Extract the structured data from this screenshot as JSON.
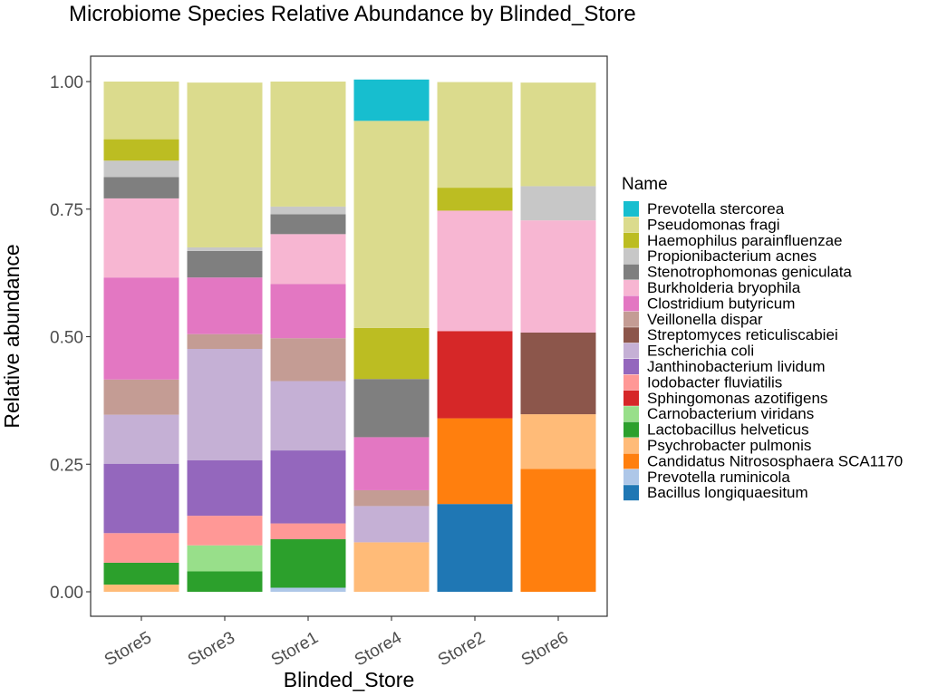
{
  "chart_data": {
    "type": "bar",
    "stacked": true,
    "title": "Microbiome Species Relative Abundance by Blinded_Store",
    "xlabel": "Blinded_Store",
    "ylabel": "Relative abundance",
    "ylim": [
      0,
      1
    ],
    "yticks": [
      "0.00",
      "0.25",
      "0.50",
      "0.75",
      "1.00"
    ],
    "ytick_values": [
      0,
      0.25,
      0.5,
      0.75,
      1.0
    ],
    "grid": false,
    "legend_position": "right",
    "legend_title": "Name",
    "categories": [
      "Store5",
      "Store3",
      "Store1",
      "Store4",
      "Store2",
      "Store6"
    ],
    "series": [
      {
        "name": "Prevotella stercorea",
        "color": "#17BECF",
        "values": [
          0,
          0,
          0,
          0.081,
          0,
          0
        ]
      },
      {
        "name": "Pseudomonas fragi",
        "color": "#DBDB8D",
        "values": [
          0.113,
          0.323,
          0.245,
          0.406,
          0.207,
          0.203
        ]
      },
      {
        "name": "Haemophilus parainfluenzae",
        "color": "#BCBD22",
        "values": [
          0.042,
          0,
          0,
          0.1,
          0.045,
          0
        ]
      },
      {
        "name": "Propionibacterium acnes",
        "color": "#C7C7C7",
        "values": [
          0.032,
          0.007,
          0.015,
          0,
          0,
          0.067
        ]
      },
      {
        "name": "Stenotrophomonas geniculata",
        "color": "#7F7F7F",
        "values": [
          0.042,
          0.052,
          0.039,
          0.114,
          0,
          0
        ]
      },
      {
        "name": "Burkholderia bryophila",
        "color": "#F7B6D2",
        "values": [
          0.155,
          0,
          0.098,
          0,
          0.236,
          0.22
        ]
      },
      {
        "name": "Clostridium butyricum",
        "color": "#E377C2",
        "values": [
          0.2,
          0.111,
          0.106,
          0.104,
          0,
          0
        ]
      },
      {
        "name": "Veillonella dispar",
        "color": "#C49C94",
        "values": [
          0.069,
          0.029,
          0.084,
          0.031,
          0,
          0
        ]
      },
      {
        "name": "Streptomyces reticuliscabiei",
        "color": "#8C564B",
        "values": [
          0,
          0,
          0,
          0,
          0,
          0.16
        ]
      },
      {
        "name": "Escherichia coli",
        "color": "#C5B0D5",
        "values": [
          0.096,
          0.218,
          0.136,
          0.071,
          0,
          0
        ]
      },
      {
        "name": "Janthinobacterium lividum",
        "color": "#9467BD",
        "values": [
          0.136,
          0.109,
          0.143,
          0,
          0,
          0
        ]
      },
      {
        "name": "Iodobacter fluviatilis",
        "color": "#FF9896",
        "values": [
          0.058,
          0.058,
          0.031,
          0,
          0,
          0
        ]
      },
      {
        "name": "Sphingomonas azotifigens",
        "color": "#D62728",
        "values": [
          0,
          0,
          0,
          0,
          0.171,
          0
        ]
      },
      {
        "name": "Carnobacterium viridans",
        "color": "#98DF8A",
        "values": [
          0,
          0.051,
          0,
          0,
          0,
          0
        ]
      },
      {
        "name": "Lactobacillus helveticus",
        "color": "#2CA02C",
        "values": [
          0.043,
          0.04,
          0.095,
          0,
          0,
          0
        ]
      },
      {
        "name": "Psychrobacter pulmonis",
        "color": "#FFBB78",
        "values": [
          0.014,
          0,
          0,
          0.097,
          0,
          0.107
        ]
      },
      {
        "name": "Candidatus Nitrososphaera SCA1170",
        "color": "#FF7F0E",
        "values": [
          0,
          0,
          0,
          0,
          0.168,
          0.241
        ]
      },
      {
        "name": "Prevotella ruminicola",
        "color": "#AEC7E8",
        "values": [
          0,
          0,
          0.008,
          0,
          0,
          0
        ]
      },
      {
        "name": "Bacillus longiquaesitum",
        "color": "#1F77B4",
        "values": [
          0,
          0,
          0,
          0,
          0.172,
          0
        ]
      }
    ]
  }
}
